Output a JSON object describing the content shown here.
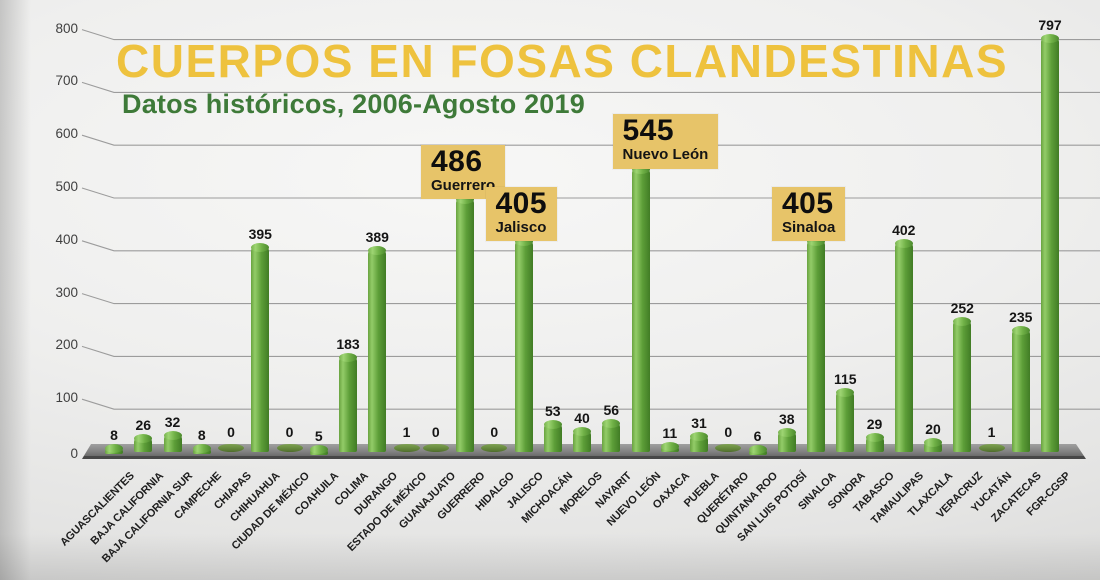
{
  "title": "CUERPOS EN FOSAS CLANDESTINAS",
  "subtitle": "Datos históricos, 2006-Agosto 2019",
  "colors": {
    "title": "#eec23e",
    "subtitle": "#3e7a39",
    "bar": "#5d9e38",
    "bar_highlight": "#93cc68",
    "bar_shadow": "#417c25",
    "callout_bg": "#e7c469",
    "grid": "#9c9c9c",
    "floor": "#7e7e7e",
    "label": "#151515"
  },
  "chart_data": {
    "type": "bar",
    "title": "CUERPOS EN FOSAS CLANDESTINAS",
    "subtitle": "Datos históricos, 2006-Agosto 2019",
    "categories": [
      "AGUASCALIENTES",
      "BAJA CALIFORNIA",
      "BAJA CALIFORNIA SUR",
      "CAMPECHE",
      "CHIAPAS",
      "CHIHUAHUA",
      "CIUDAD DE MÉXICO",
      "COAHUILA",
      "COLIMA",
      "DURANGO",
      "ESTADO DE MÉXICO",
      "GUANAJUATO",
      "GUERRERO",
      "HIDALGO",
      "JALISCO",
      "MICHOACÁN",
      "MORELOS",
      "NAYARIT",
      "NUEVO LEÓN",
      "OAXACA",
      "PUEBLA",
      "QUERÉTARO",
      "QUINTANA ROO",
      "SAN LUIS POTOSÍ",
      "SINALOA",
      "SONORA",
      "TABASCO",
      "TAMAULIPAS",
      "TLAXCALA",
      "VERACRUZ",
      "YUCATÁN",
      "ZACATECAS",
      "FGR-CGSP"
    ],
    "values": [
      8,
      26,
      32,
      8,
      0,
      395,
      0,
      5,
      183,
      389,
      1,
      0,
      486,
      0,
      405,
      53,
      40,
      56,
      545,
      11,
      31,
      0,
      6,
      38,
      405,
      115,
      29,
      402,
      20,
      252,
      1,
      235,
      797
    ],
    "ylim": [
      0,
      800
    ],
    "yticks": [
      0,
      100,
      200,
      300,
      400,
      500,
      600,
      700,
      800
    ],
    "grid": true,
    "legend": false,
    "xlabel": "",
    "ylabel": "",
    "callouts": [
      {
        "category": "GUERRERO",
        "value_label": "486",
        "name_label": "Guerrero",
        "dx": -44
      },
      {
        "category": "JALISCO",
        "value_label": "405",
        "name_label": "Jalisco",
        "dx": -38
      },
      {
        "category": "NUEVO LEÓN",
        "value_label": "545",
        "name_label": "Nuevo León",
        "dx": -28
      },
      {
        "category": "SINALOA",
        "value_label": "405",
        "name_label": "Sinaloa",
        "dx": -44
      }
    ]
  }
}
